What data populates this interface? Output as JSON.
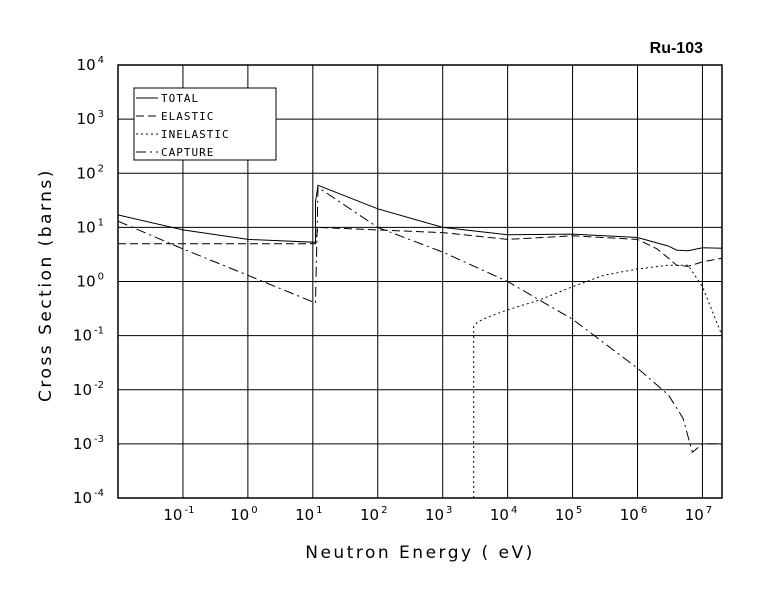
{
  "chart_data": {
    "type": "line",
    "title": "Ru-103",
    "xlabel": "Neutron Energy ( eV)",
    "ylabel": "Cross Section (barns)",
    "x_scale": "log",
    "y_scale": "log",
    "xlim": [
      0.01,
      20000000
    ],
    "ylim": [
      0.0001,
      10000
    ],
    "grid": true,
    "legend_position": "top-left",
    "x_ticks": [
      {
        "base": "10",
        "exp": "-1"
      },
      {
        "base": "10",
        "exp": "0"
      },
      {
        "base": "10",
        "exp": "1"
      },
      {
        "base": "10",
        "exp": "2"
      },
      {
        "base": "10",
        "exp": "3"
      },
      {
        "base": "10",
        "exp": "4"
      },
      {
        "base": "10",
        "exp": "5"
      },
      {
        "base": "10",
        "exp": "6"
      },
      {
        "base": "10",
        "exp": "7"
      }
    ],
    "y_ticks": [
      {
        "base": "10",
        "exp": "4"
      },
      {
        "base": "10",
        "exp": "3"
      },
      {
        "base": "10",
        "exp": "2"
      },
      {
        "base": "10",
        "exp": "1"
      },
      {
        "base": "10",
        "exp": "0"
      },
      {
        "base": "10",
        "exp": "-1"
      },
      {
        "base": "10",
        "exp": "-2"
      },
      {
        "base": "10",
        "exp": "-3"
      },
      {
        "base": "10",
        "exp": "-4"
      }
    ],
    "series": [
      {
        "name": "TOTAL",
        "dash": "solid",
        "x": [
          0.01,
          0.1,
          1,
          11,
          11,
          12,
          100,
          1000,
          10000,
          100000,
          1000000,
          3000000,
          4000000,
          6000000,
          10000000,
          20000000
        ],
        "y": [
          17,
          9,
          6,
          5.3,
          30,
          60,
          22,
          10,
          7.3,
          7.5,
          6.5,
          4.5,
          3.8,
          3.7,
          4.2,
          4.1
        ]
      },
      {
        "name": "ELASTIC",
        "dash": "dashed",
        "x": [
          0.01,
          0.1,
          1,
          11,
          12,
          100,
          1000,
          10000,
          100000,
          1000000,
          2000000,
          3000000,
          4000000,
          6000000,
          10000000,
          20000000
        ],
        "y": [
          5,
          5,
          5,
          5,
          10,
          9,
          8,
          6,
          7,
          6,
          4,
          2.7,
          2,
          1.9,
          2.3,
          2.7
        ]
      },
      {
        "name": "INELASTIC",
        "dash": "dotted",
        "x": [
          3000,
          3000,
          3500,
          5000,
          10000,
          30000,
          100000,
          300000,
          1000000,
          3000000,
          6000000,
          10000000,
          20000000
        ],
        "y": [
          0.0001,
          0.15,
          0.18,
          0.22,
          0.3,
          0.45,
          0.8,
          1.3,
          1.7,
          2,
          2,
          0.8,
          0.1
        ]
      },
      {
        "name": "CAPTURE",
        "dash": "dash-dot",
        "x": [
          0.01,
          0.1,
          1,
          11,
          11,
          12,
          100,
          1000,
          10000,
          100000,
          1000000,
          3000000,
          5000000,
          7000000,
          10000000,
          20000000
        ],
        "y": [
          13,
          4,
          1.3,
          0.4,
          0.4,
          55,
          10,
          3.5,
          1,
          0.2,
          0.025,
          0.008,
          0.003,
          0.0007,
          0.001,
          0.001
        ]
      }
    ]
  }
}
